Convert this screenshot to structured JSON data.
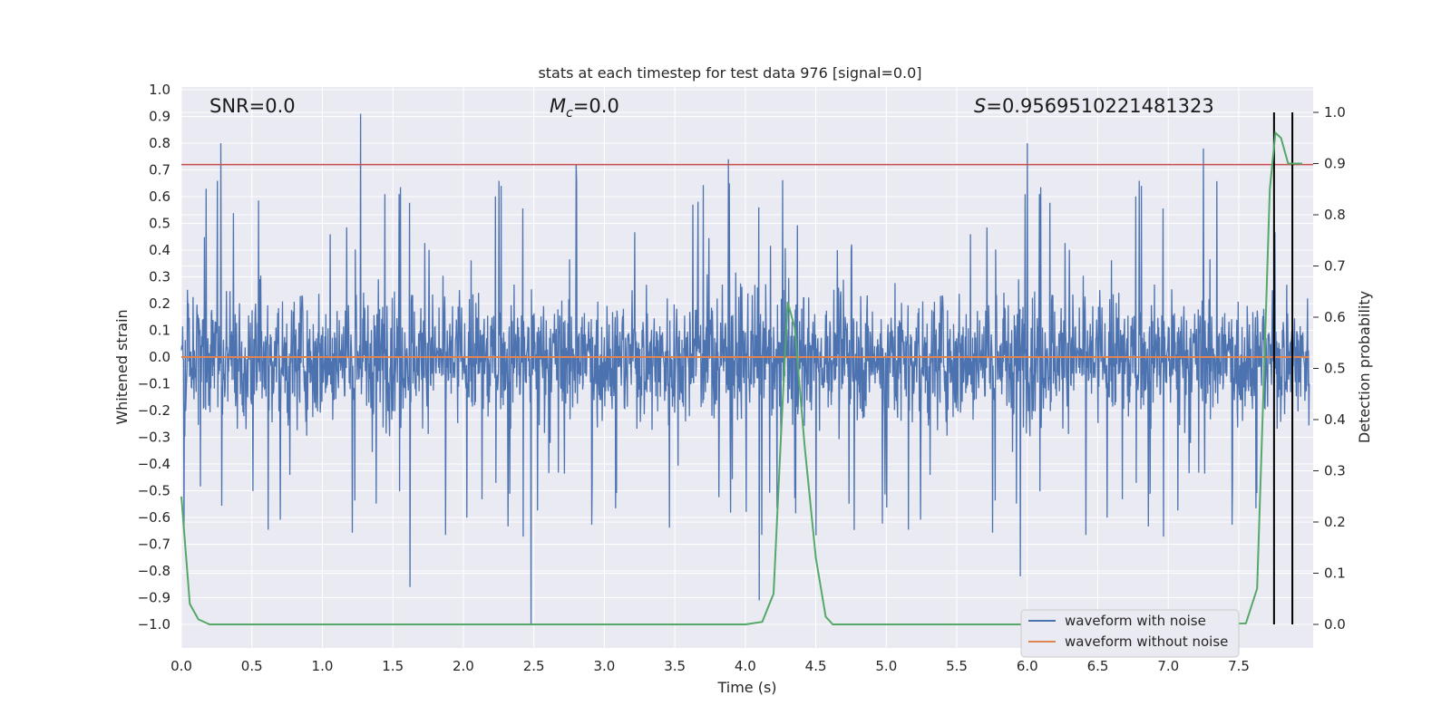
{
  "chart_data": {
    "type": "line",
    "title": "stats at each timestep for test data 976 [signal=0.0]",
    "xlabel": "Time (s)",
    "ylabel": "Whitened strain",
    "ylabel_right": "Detection probability",
    "xlim": [
      0.0,
      8.0
    ],
    "ylim": [
      -1.09,
      1.0
    ],
    "ylim_right": [
      -0.05,
      1.05
    ],
    "xticks": [
      "0.0",
      "0.5",
      "1.0",
      "1.5",
      "2.0",
      "2.5",
      "3.0",
      "3.5",
      "4.0",
      "4.5",
      "5.0",
      "5.5",
      "6.0",
      "6.5",
      "7.0",
      "7.5"
    ],
    "yticks": [
      "−1.0",
      "−0.9",
      "−0.8",
      "−0.7",
      "−0.6",
      "−0.5",
      "−0.4",
      "−0.3",
      "−0.2",
      "−0.1",
      "0.0",
      "0.1",
      "0.2",
      "0.3",
      "0.4",
      "0.5",
      "0.6",
      "0.7",
      "0.8",
      "0.9",
      "1.0"
    ],
    "yticks_right": [
      "0.0",
      "0.1",
      "0.2",
      "0.3",
      "0.4",
      "0.5",
      "0.6",
      "0.7",
      "0.8",
      "0.9",
      "1.0"
    ],
    "grid": true,
    "legend_position": "lower-right",
    "annotations": {
      "snr": "SNR=0.0",
      "mc_symbol": "M",
      "mc_sub": "c",
      "mc_value": "=0.0",
      "s_symbol": "S",
      "s_value": "=0.9569510221481323"
    },
    "series": [
      {
        "name": "waveform with noise",
        "color": "#4c72b0",
        "note": "dense whitened noise, approx uniform band",
        "band": [
          -0.45,
          0.45
        ],
        "peaks_x": [
          0.28,
          1.27,
          2.48,
          6.0,
          7.25,
          3.88,
          4.1,
          1.62,
          2.8,
          5.95
        ],
        "peaks_y": [
          0.8,
          0.91,
          -1.0,
          0.8,
          0.78,
          0.74,
          -0.91,
          -0.86,
          0.72,
          -0.82
        ]
      },
      {
        "name": "waveform without noise",
        "color": "#dd8452",
        "x": [
          0.0,
          8.0
        ],
        "y": [
          0.0,
          0.0
        ]
      },
      {
        "name": "detection probability",
        "color": "#55a868",
        "axis": "right",
        "x": [
          0.0,
          0.06,
          0.12,
          0.2,
          0.4,
          1.0,
          2.0,
          3.0,
          4.0,
          4.12,
          4.2,
          4.25,
          4.3,
          4.35,
          4.42,
          4.5,
          4.57,
          4.62,
          4.8,
          5.5,
          6.5,
          7.55,
          7.63,
          7.68,
          7.72,
          7.76,
          7.8,
          7.85,
          7.9,
          7.95
        ],
        "y": [
          0.25,
          0.04,
          0.01,
          0.0,
          0.0,
          0.0,
          0.0,
          0.0,
          0.0,
          0.005,
          0.06,
          0.35,
          0.63,
          0.58,
          0.35,
          0.13,
          0.015,
          0.0,
          0.0,
          0.0,
          0.0,
          0.002,
          0.07,
          0.5,
          0.85,
          0.96,
          0.95,
          0.9,
          0.9,
          0.9
        ]
      }
    ],
    "hlines": [
      {
        "y": 0.72,
        "color": "#c44e52"
      }
    ],
    "vlines": [
      {
        "x": 7.75,
        "color": "#000000"
      },
      {
        "x": 7.88,
        "color": "#000000"
      }
    ],
    "legend": [
      {
        "label": "waveform with noise",
        "color": "#4c72b0"
      },
      {
        "label": "waveform without noise",
        "color": "#dd8452"
      }
    ]
  },
  "colors": {
    "plot_bg": "#eaeaf2",
    "grid": "#ffffff"
  }
}
